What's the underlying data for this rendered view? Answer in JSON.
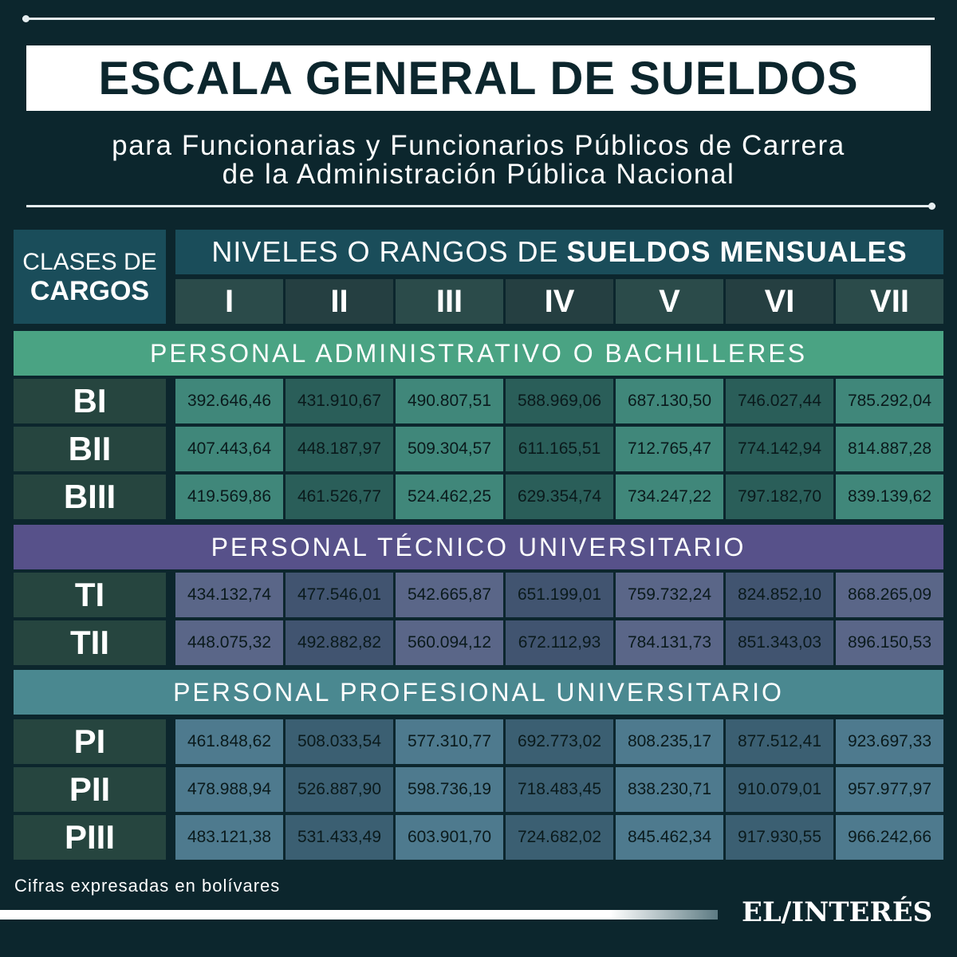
{
  "header": {
    "title": "ESCALA GENERAL DE SUELDOS",
    "subtitle_line1": "para Funcionarias y Funcionarios Públicos de Carrera",
    "subtitle_line2": "de la Administración Pública Nacional"
  },
  "table": {
    "corner_line1": "CLASES DE",
    "corner_line2": "CARGOS",
    "niveles_prefix": "NIVELES O RANGOS DE",
    "niveles_bold": "SUELDOS MENSUALES",
    "levels": [
      "I",
      "II",
      "III",
      "IV",
      "V",
      "VI",
      "VII"
    ],
    "groups": [
      {
        "label": "PERSONAL ADMINISTRATIVO O BACHILLERES",
        "color": "#4aa383",
        "rows": [
          {
            "label": "BI",
            "values": [
              "392.646,46",
              "431.910,67",
              "490.807,51",
              "588.969,06",
              "687.130,50",
              "746.027,44",
              "785.292,04"
            ]
          },
          {
            "label": "BII",
            "values": [
              "407.443,64",
              "448.187,97",
              "509.304,57",
              "611.165,51",
              "712.765,47",
              "774.142,94",
              "814.887,28"
            ]
          },
          {
            "label": "BIII",
            "values": [
              "419.569,86",
              "461.526,77",
              "524.462,25",
              "629.354,74",
              "734.247,22",
              "797.182,70",
              "839.139,62"
            ]
          }
        ]
      },
      {
        "label": "PERSONAL TÉCNICO UNIVERSITARIO",
        "color": "#57518a",
        "rows": [
          {
            "label": "TI",
            "values": [
              "434.132,74",
              "477.546,01",
              "542.665,87",
              "651.199,01",
              "759.732,24",
              "824.852,10",
              "868.265,09"
            ]
          },
          {
            "label": "TII",
            "values": [
              "448.075,32",
              "492.882,82",
              "560.094,12",
              "672.112,93",
              "784.131,73",
              "851.343,03",
              "896.150,53"
            ]
          }
        ]
      },
      {
        "label": "PERSONAL PROFESIONAL UNIVERSITARIO",
        "color": "#4a8890",
        "rows": [
          {
            "label": "PI",
            "values": [
              "461.848,62",
              "508.033,54",
              "577.310,77",
              "692.773,02",
              "808.235,17",
              "877.512,41",
              "923.697,33"
            ]
          },
          {
            "label": "PII",
            "values": [
              "478.988,94",
              "526.887,90",
              "598.736,19",
              "718.483,45",
              "838.230,71",
              "910.079,01",
              "957.977,97"
            ]
          },
          {
            "label": "PIII",
            "values": [
              "483.121,38",
              "531.433,49",
              "603.901,70",
              "724.682,02",
              "845.462,34",
              "917.930,55",
              "966.242,66"
            ]
          }
        ]
      }
    ]
  },
  "footer": {
    "note": "Cifras expresadas en bolívares",
    "logo": "EL/INTERÉS"
  },
  "colors": {
    "background": "#0c262d",
    "header_blue": "#1a4d5a",
    "green_light": "#40877a",
    "green_dark": "#2a5e59",
    "purple_light": "#5a6688",
    "purple_dark": "#415470",
    "blue_light": "#4e7a8e",
    "blue_dark": "#3b5f72"
  },
  "chart_data": {
    "type": "table",
    "title": "ESCALA GENERAL DE SUELDOS",
    "subtitle": "para Funcionarias y Funcionarios Públicos de Carrera de la Administración Pública Nacional",
    "unit": "bolívares (mensual)",
    "columns": [
      "I",
      "II",
      "III",
      "IV",
      "V",
      "VI",
      "VII"
    ],
    "rows": [
      {
        "group": "PERSONAL ADMINISTRATIVO O BACHILLERES",
        "class": "BI",
        "values": [
          392646.46,
          431910.67,
          490807.51,
          588969.06,
          687130.5,
          746027.44,
          785292.04
        ]
      },
      {
        "group": "PERSONAL ADMINISTRATIVO O BACHILLERES",
        "class": "BII",
        "values": [
          407443.64,
          448187.97,
          509304.57,
          611165.51,
          712765.47,
          774142.94,
          814887.28
        ]
      },
      {
        "group": "PERSONAL ADMINISTRATIVO O BACHILLERES",
        "class": "BIII",
        "values": [
          419569.86,
          461526.77,
          524462.25,
          629354.74,
          734247.22,
          797182.7,
          839139.62
        ]
      },
      {
        "group": "PERSONAL TÉCNICO UNIVERSITARIO",
        "class": "TI",
        "values": [
          434132.74,
          477546.01,
          542665.87,
          651199.01,
          759732.24,
          824852.1,
          868265.09
        ]
      },
      {
        "group": "PERSONAL TÉCNICO UNIVERSITARIO",
        "class": "TII",
        "values": [
          448075.32,
          492882.82,
          560094.12,
          672112.93,
          784131.73,
          851343.03,
          896150.53
        ]
      },
      {
        "group": "PERSONAL PROFESIONAL UNIVERSITARIO",
        "class": "PI",
        "values": [
          461848.62,
          508033.54,
          577310.77,
          692773.02,
          808235.17,
          877512.41,
          923697.33
        ]
      },
      {
        "group": "PERSONAL PROFESIONAL UNIVERSITARIO",
        "class": "PII",
        "values": [
          478988.94,
          526887.9,
          598736.19,
          718483.45,
          838230.71,
          910079.01,
          957977.97
        ]
      },
      {
        "group": "PERSONAL PROFESIONAL UNIVERSITARIO",
        "class": "PIII",
        "values": [
          483121.38,
          531433.49,
          603901.7,
          724682.02,
          845462.34,
          917930.55,
          966242.66
        ]
      }
    ]
  }
}
